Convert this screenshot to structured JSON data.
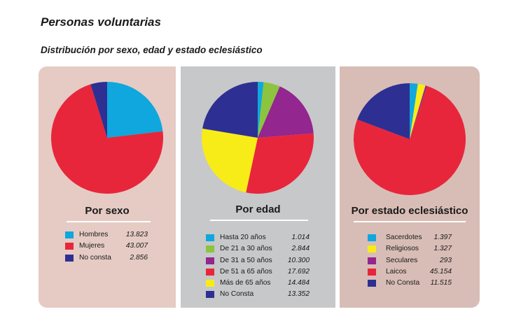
{
  "header": {
    "title": "Personas voluntarias",
    "subtitle": "Distribución por sexo, edad y estado eclesiástico"
  },
  "chart_data": [
    {
      "type": "pie",
      "title": "Por sexo",
      "categories": [
        "Hombres",
        "Mujeres",
        "No consta"
      ],
      "values": [
        13823,
        43007,
        2856
      ],
      "value_labels": [
        "13.823",
        "43.007",
        "2.856"
      ],
      "colors": [
        "#0fa7dd",
        "#e8263b",
        "#2d3092"
      ],
      "legend": "bottom"
    },
    {
      "type": "pie",
      "title": "Por edad",
      "categories": [
        "Hasta 20 años",
        "De 21 a 30 años",
        "De 31 a 50 años",
        "De 51 a 65 años",
        "Más de 65 años",
        "No Consta"
      ],
      "values": [
        1014,
        2844,
        10300,
        17692,
        14484,
        13352
      ],
      "value_labels": [
        "1.014",
        "2.844",
        "10.300",
        "17.692",
        "14.484",
        "13.352"
      ],
      "colors": [
        "#0fa7dd",
        "#8cc43f",
        "#93268f",
        "#e8263b",
        "#f7ec17",
        "#2d3092"
      ],
      "legend": "bottom"
    },
    {
      "type": "pie",
      "title": "Por estado eclesiástico",
      "categories": [
        "Sacerdotes",
        "Religiosos",
        "Seculares",
        "Laicos",
        "No Consta"
      ],
      "values": [
        1397,
        1327,
        293,
        45154,
        11515
      ],
      "value_labels": [
        "1.397",
        "1.327",
        "293",
        "45.154",
        "11.515"
      ],
      "colors": [
        "#0fa7dd",
        "#f7ec17",
        "#93268f",
        "#e8263b",
        "#2d3092"
      ],
      "legend": "bottom"
    }
  ]
}
